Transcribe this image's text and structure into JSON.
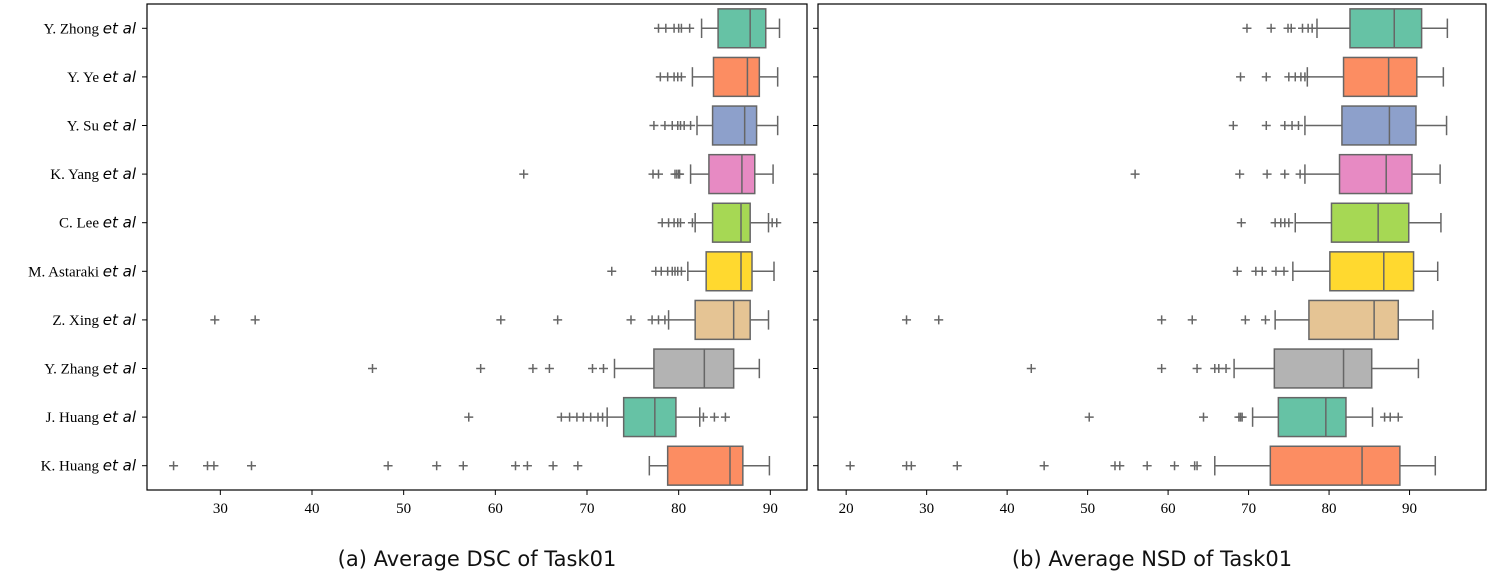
{
  "figure": {
    "etal_suffix": "et al",
    "teams": [
      "Y. Zhong",
      "Y. Ye",
      "Y. Su",
      "K. Yang",
      "C. Lee",
      "M. Astaraki",
      "Z. Xing",
      "Y. Zhang",
      "J. Huang",
      "K. Huang"
    ],
    "colors": [
      "#66c2a5",
      "#fc8d62",
      "#8da0cb",
      "#e78ac3",
      "#a6d854",
      "#ffd92f",
      "#e5c494",
      "#b3b3b3",
      "#66c2a5",
      "#fc8d62"
    ],
    "line_color": "#666666"
  },
  "chart_data": [
    {
      "type": "box",
      "orientation": "horizontal",
      "caption": "(a) Average DSC of Task01",
      "xlim": [
        22,
        94
      ],
      "xticks": [
        30,
        40,
        50,
        60,
        70,
        80,
        90
      ],
      "xtick_labels": [
        "30",
        "40",
        "50",
        "60",
        "70",
        "80",
        "90"
      ],
      "series": [
        {
          "name": "Y. Zhong",
          "whisker_low": 82.5,
          "q1": 84.3,
          "median": 87.8,
          "q3": 89.5,
          "whisker_high": 91.0,
          "outliers": [
            77.8,
            78.6,
            79.5,
            80.0,
            80.3,
            81.2
          ]
        },
        {
          "name": "Y. Ye",
          "whisker_low": 81.5,
          "q1": 83.8,
          "median": 87.5,
          "q3": 88.8,
          "whisker_high": 90.8,
          "outliers": [
            78.0,
            78.8,
            79.5,
            79.9,
            80.3
          ]
        },
        {
          "name": "Y. Su",
          "whisker_low": 82.0,
          "q1": 83.7,
          "median": 87.2,
          "q3": 88.5,
          "whisker_high": 90.8,
          "outliers": [
            77.3,
            78.5,
            79.3,
            79.9,
            80.2,
            80.6,
            81.3
          ]
        },
        {
          "name": "K. Yang",
          "whisker_low": 81.3,
          "q1": 83.3,
          "median": 86.9,
          "q3": 88.3,
          "whisker_high": 90.3,
          "outliers": [
            63.1,
            77.2,
            77.8,
            79.6,
            79.8,
            80.0,
            80.1
          ]
        },
        {
          "name": "C. Lee",
          "whisker_low": 81.8,
          "q1": 83.7,
          "median": 86.8,
          "q3": 87.8,
          "whisker_high": 89.8,
          "outliers": [
            78.2,
            78.9,
            79.5,
            79.9,
            80.2,
            81.5,
            90.2,
            90.7
          ]
        },
        {
          "name": "M. Astaraki",
          "whisker_low": 81.0,
          "q1": 83.0,
          "median": 86.8,
          "q3": 88.0,
          "whisker_high": 90.4,
          "outliers": [
            72.7,
            77.5,
            78.1,
            78.8,
            79.3,
            79.6,
            79.9,
            80.3
          ]
        },
        {
          "name": "Z. Xing",
          "whisker_low": 78.9,
          "q1": 81.8,
          "median": 86.0,
          "q3": 87.8,
          "whisker_high": 89.8,
          "outliers": [
            29.4,
            33.8,
            60.6,
            66.8,
            74.8,
            77.1,
            77.8,
            78.5
          ]
        },
        {
          "name": "Y. Zhang",
          "whisker_low": 73.0,
          "q1": 77.3,
          "median": 82.8,
          "q3": 86.0,
          "whisker_high": 88.8,
          "outliers": [
            46.6,
            58.4,
            64.1,
            65.9,
            70.6,
            71.8
          ]
        },
        {
          "name": "J. Huang",
          "whisker_low": 72.2,
          "q1": 74.0,
          "median": 77.4,
          "q3": 79.7,
          "whisker_high": 82.3,
          "outliers": [
            57.1,
            67.2,
            68.1,
            68.9,
            69.6,
            70.4,
            71.2,
            71.7,
            82.7,
            83.9,
            85.1
          ]
        },
        {
          "name": "K. Huang",
          "whisker_low": 76.8,
          "q1": 78.8,
          "median": 85.6,
          "q3": 87.0,
          "whisker_high": 89.9,
          "outliers": [
            24.9,
            28.6,
            29.3,
            33.4,
            48.3,
            53.6,
            56.5,
            62.2,
            63.5,
            66.3,
            69.0
          ]
        }
      ]
    },
    {
      "type": "box",
      "orientation": "horizontal",
      "caption": "(b) Average NSD of Task01",
      "xlim": [
        16.5,
        99.5
      ],
      "xticks": [
        20,
        30,
        40,
        50,
        60,
        70,
        80,
        90
      ],
      "xtick_labels": [
        "20",
        "30",
        "40",
        "50",
        "60",
        "70",
        "80",
        "90"
      ],
      "series": [
        {
          "name": "Y. Zhong",
          "whisker_low": 78.5,
          "q1": 82.6,
          "median": 88.1,
          "q3": 91.5,
          "whisker_high": 94.7,
          "outliers": [
            69.8,
            72.8,
            74.9,
            75.3,
            76.7,
            77.4,
            77.9
          ]
        },
        {
          "name": "Y. Ye",
          "whisker_low": 77.3,
          "q1": 81.8,
          "median": 87.4,
          "q3": 90.9,
          "whisker_high": 94.2,
          "outliers": [
            69.0,
            72.2,
            75.0,
            75.8,
            76.5,
            77.0
          ]
        },
        {
          "name": "Y. Su",
          "whisker_low": 77.0,
          "q1": 81.6,
          "median": 87.5,
          "q3": 90.8,
          "whisker_high": 94.6,
          "outliers": [
            68.1,
            72.2,
            74.5,
            75.4,
            76.2
          ]
        },
        {
          "name": "K. Yang",
          "whisker_low": 77.0,
          "q1": 81.3,
          "median": 87.1,
          "q3": 90.3,
          "whisker_high": 93.8,
          "outliers": [
            55.9,
            68.9,
            72.3,
            74.5,
            76.4
          ]
        },
        {
          "name": "C. Lee",
          "whisker_low": 75.8,
          "q1": 80.3,
          "median": 86.1,
          "q3": 89.9,
          "whisker_high": 93.9,
          "outliers": [
            69.1,
            73.3,
            74.0,
            74.5,
            75.0
          ]
        },
        {
          "name": "M. Astaraki",
          "whisker_low": 75.5,
          "q1": 80.1,
          "median": 86.8,
          "q3": 90.5,
          "whisker_high": 93.5,
          "outliers": [
            68.6,
            70.9,
            71.7,
            73.4,
            74.4
          ]
        },
        {
          "name": "Z. Xing",
          "whisker_low": 73.3,
          "q1": 77.5,
          "median": 85.6,
          "q3": 88.6,
          "whisker_high": 92.9,
          "outliers": [
            27.5,
            31.5,
            59.2,
            63.0,
            69.6,
            72.1
          ]
        },
        {
          "name": "Y. Zhang",
          "whisker_low": 68.2,
          "q1": 73.2,
          "median": 81.8,
          "q3": 85.3,
          "whisker_high": 91.1,
          "outliers": [
            43.0,
            59.2,
            63.6,
            65.8,
            66.3,
            67.2
          ]
        },
        {
          "name": "J. Huang",
          "whisker_low": 70.5,
          "q1": 73.7,
          "median": 79.6,
          "q3": 82.1,
          "whisker_high": 85.4,
          "outliers": [
            50.2,
            64.4,
            68.8,
            69.0,
            69.2,
            86.9,
            87.6,
            88.6
          ]
        },
        {
          "name": "K. Huang",
          "whisker_low": 65.8,
          "q1": 72.7,
          "median": 84.1,
          "q3": 88.8,
          "whisker_high": 93.2,
          "outliers": [
            20.5,
            27.5,
            28.1,
            33.8,
            44.6,
            53.4,
            54.0,
            57.4,
            60.8,
            63.3,
            63.6
          ]
        }
      ]
    }
  ]
}
